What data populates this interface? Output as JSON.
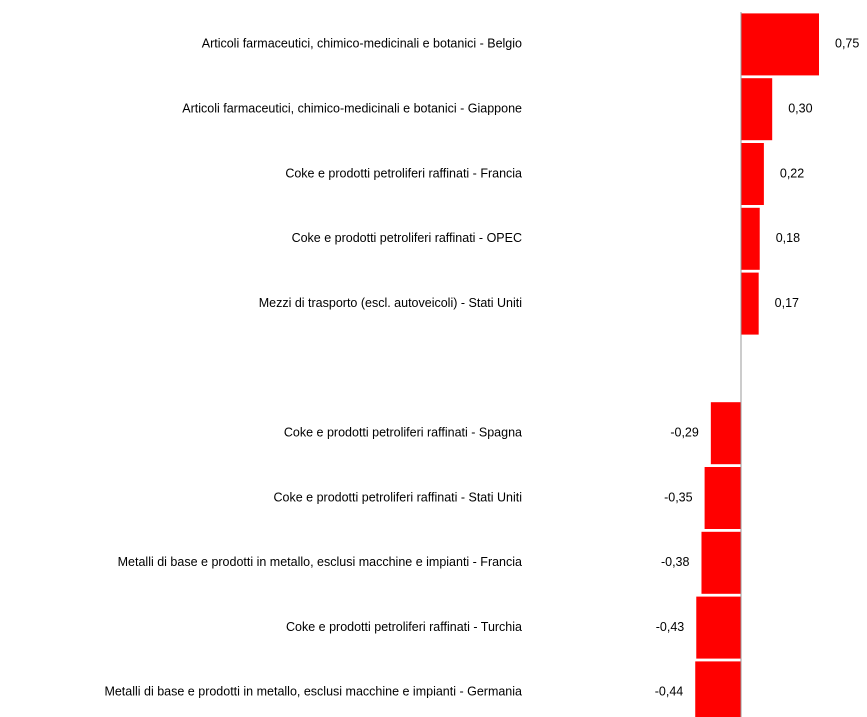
{
  "chart_data": {
    "type": "bar",
    "orientation": "horizontal",
    "categories": [
      "Articoli farmaceutici, chimico-medicinali e botanici - Belgio",
      "Articoli farmaceutici, chimico-medicinali e botanici - Giappone",
      "Coke e prodotti petroliferi raffinati - Francia",
      "Coke e prodotti petroliferi raffinati - OPEC",
      "Mezzi di trasporto (escl. autoveicoli) - Stati Uniti",
      null,
      "Coke e prodotti petroliferi raffinati - Spagna",
      "Coke e prodotti petroliferi raffinati - Stati Uniti",
      "Metalli di base e prodotti in metallo, esclusi macchine e impianti - Francia",
      "Coke e prodotti petroliferi raffinati - Turchia",
      "Metalli di base e prodotti in metallo, esclusi macchine e impianti - Germania"
    ],
    "values": [
      0.75,
      0.3,
      0.22,
      0.18,
      0.17,
      null,
      -0.29,
      -0.35,
      -0.38,
      -0.43,
      -0.44
    ],
    "value_labels": [
      "0,75",
      "0,30",
      "0,22",
      "0,18",
      "0,17",
      null,
      "-0,29",
      "-0,35",
      "-0,38",
      "-0,43",
      "-0,44"
    ],
    "color": "#ff0000"
  }
}
